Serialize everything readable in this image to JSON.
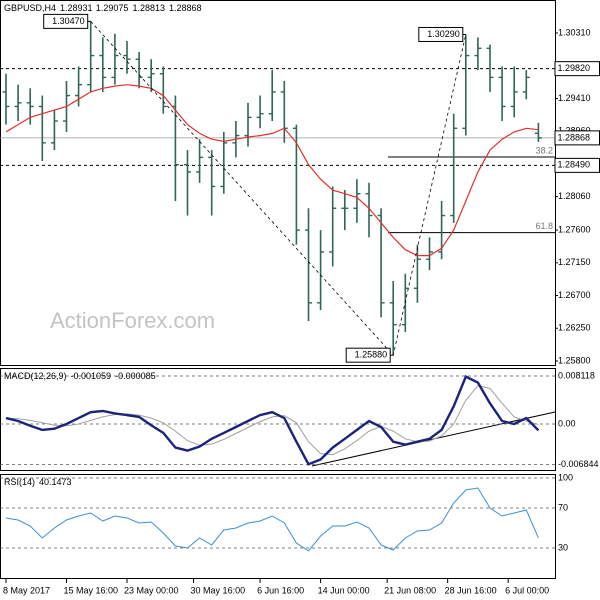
{
  "chart_data": {
    "type": "ohlc",
    "symbol": "GBPUSD,H4",
    "color": "#2f6656",
    "watermark": "ActionForex.com",
    "open": [
      1.295,
      1.293,
      1.2935,
      1.293,
      1.288,
      1.291,
      1.2945,
      1.296,
      1.3,
      1.297,
      1.3,
      1.2995,
      1.297,
      1.2975,
      1.293,
      1.285,
      1.284,
      1.286,
      1.282,
      1.288,
      1.289,
      1.2915,
      1.292,
      1.295,
      1.29,
      1.276,
      1.266,
      1.273,
      1.279,
      1.279,
      1.281,
      1.278,
      1.266,
      1.263,
      1.268,
      1.272,
      1.273,
      1.278,
      1.29,
      1.3,
      1.301,
      1.297,
      1.293,
      1.295,
      1.28931
    ],
    "high": [
      1.2975,
      1.296,
      1.2955,
      1.2945,
      1.2925,
      1.2965,
      1.2985,
      1.3047,
      1.3025,
      1.303,
      1.302,
      1.3005,
      1.2995,
      1.2985,
      1.2945,
      1.287,
      1.2885,
      1.287,
      1.2895,
      1.291,
      1.2935,
      1.2945,
      1.298,
      1.2965,
      1.2905,
      1.279,
      1.276,
      1.282,
      1.2815,
      1.283,
      1.2825,
      1.279,
      1.269,
      1.27,
      1.274,
      1.275,
      1.28,
      1.292,
      1.3029,
      1.3025,
      1.3015,
      1.2985,
      1.2985,
      1.298,
      1.29075
    ],
    "low": [
      1.2905,
      1.291,
      1.2905,
      1.2855,
      1.287,
      1.2895,
      1.293,
      1.295,
      1.295,
      1.296,
      1.2975,
      1.2955,
      1.295,
      1.292,
      1.28,
      1.278,
      1.2825,
      1.278,
      1.281,
      1.286,
      1.2875,
      1.29,
      1.291,
      1.288,
      1.274,
      1.2635,
      1.265,
      1.271,
      1.276,
      1.277,
      1.275,
      1.264,
      1.2588,
      1.262,
      1.266,
      1.2705,
      1.272,
      1.277,
      1.289,
      1.298,
      1.295,
      1.291,
      1.2915,
      1.294,
      1.28813
    ],
    "close": [
      1.293,
      1.2935,
      1.293,
      1.288,
      1.291,
      1.2945,
      1.296,
      1.3,
      1.297,
      1.3,
      1.2995,
      1.297,
      1.2975,
      1.293,
      1.285,
      1.284,
      1.286,
      1.282,
      1.288,
      1.289,
      1.2915,
      1.292,
      1.295,
      1.29,
      1.276,
      1.266,
      1.273,
      1.279,
      1.279,
      1.281,
      1.278,
      1.266,
      1.263,
      1.268,
      1.272,
      1.273,
      1.278,
      1.29,
      1.3,
      1.301,
      1.297,
      1.293,
      1.295,
      1.297,
      1.28868
    ],
    "ma": {
      "color": "#e0302a",
      "values": [
        1.2895,
        1.2905,
        1.2915,
        1.292,
        1.2925,
        1.293,
        1.294,
        1.295,
        1.2955,
        1.2958,
        1.296,
        1.2958,
        1.2955,
        1.2945,
        1.2925,
        1.2905,
        1.2893,
        1.2885,
        1.2882,
        1.2885,
        1.2888,
        1.289,
        1.2893,
        1.29,
        1.288,
        1.285,
        1.283,
        1.2815,
        1.281,
        1.2805,
        1.279,
        1.277,
        1.275,
        1.2733,
        1.2725,
        1.2725,
        1.2735,
        1.276,
        1.28,
        1.284,
        1.287,
        1.2885,
        1.2895,
        1.29,
        1.2898
      ]
    },
    "ylim": [
      1.25745,
      1.30764
    ],
    "yticks": [
      {
        "value": 1.3031,
        "label": "1.30310"
      },
      {
        "value": 1.2941,
        "label": "1.29410"
      },
      {
        "value": 1.2896,
        "label": "1.28960"
      },
      {
        "value": 1.2806,
        "label": "1.28060"
      },
      {
        "value": 1.276,
        "label": "1.27600"
      },
      {
        "value": 1.2715,
        "label": "1.27150"
      },
      {
        "value": 1.267,
        "label": "1.26700"
      },
      {
        "value": 1.2625,
        "label": "1.26250"
      },
      {
        "value": 1.258,
        "label": "1.25800"
      }
    ],
    "levels": [
      {
        "value": 1.2982,
        "label": "1.29820"
      },
      {
        "value": 1.2849,
        "label": "1.28490"
      }
    ],
    "last": {
      "value": 1.28868,
      "label": "1.28868"
    },
    "fibs": [
      {
        "value": 1.28605,
        "label": "38.2"
      },
      {
        "value": 1.27565,
        "label": "61.8"
      }
    ],
    "pivots": [
      {
        "bar": 7,
        "value": 1.3047,
        "label": "1.30470"
      },
      {
        "bar": 32,
        "value": 1.2588,
        "label": "1.25880"
      },
      {
        "bar": 38,
        "value": 1.3029,
        "label": "1.30290"
      }
    ],
    "xticks": [
      {
        "value": 0,
        "label": "8 May 2017"
      },
      {
        "value": 5,
        "label": "15 May 16:00"
      },
      {
        "value": 10,
        "label": "23 May 00:00"
      },
      {
        "value": 15.5,
        "label": "30 May 16:00"
      },
      {
        "value": 21,
        "label": "6 Jun 16:00"
      },
      {
        "value": 26,
        "label": "14 Jun 00:00"
      },
      {
        "value": 31.5,
        "label": "21 Jun 08:00"
      },
      {
        "value": 36.5,
        "label": "28 Jun 16:00"
      },
      {
        "value": 41.5,
        "label": "6 Jul 00:00"
      }
    ],
    "macd": {
      "label": "MACD(12,26,9)",
      "ylim": [
        -0.00778,
        0.00947
      ],
      "yticks": [
        0.008118,
        {
          "value": 0,
          "label": "0.00"
        },
        -0.006844
      ],
      "series": [
        {
          "color": "#1a237e",
          "values": [
            0.001,
            0.0005,
            -0.0003,
            -0.001,
            -0.0008,
            0.0,
            0.001,
            0.002,
            0.0022,
            0.0018,
            0.0015,
            0.0012,
            -0.0002,
            -0.0015,
            -0.004,
            -0.0045,
            -0.0038,
            -0.0025,
            -0.0015,
            -0.0005,
            0.0005,
            0.0015,
            0.002,
            0.001,
            -0.003,
            -0.0068,
            -0.006,
            -0.004,
            -0.0025,
            -0.001,
            0.0005,
            -0.0005,
            -0.003,
            -0.0035,
            -0.003,
            -0.0025,
            -0.001,
            0.003,
            0.008,
            0.007,
            0.0035,
            0.0005,
            0.0,
            0.001,
            -0.001059
          ]
        },
        {
          "color": "#a0a0a0",
          "values": [
            0.001,
            0.0009,
            0.0006,
            0.0002,
            -0.0002,
            -0.0003,
            0.0,
            0.0006,
            0.0012,
            0.0016,
            0.0017,
            0.0015,
            0.001,
            0.0002,
            -0.0012,
            -0.0028,
            -0.0036,
            -0.0034,
            -0.0026,
            -0.0016,
            -0.0006,
            0.0004,
            0.0012,
            0.0014,
            0.0002,
            -0.003,
            -0.005,
            -0.0052,
            -0.0042,
            -0.0028,
            -0.0012,
            -0.0004,
            -0.0012,
            -0.0025,
            -0.003,
            -0.0029,
            -0.002,
            0.0,
            0.004,
            0.0065,
            0.006,
            0.0035,
            0.0012,
            0.0005,
            -8.5e-05
          ]
        }
      ]
    },
    "rsi": {
      "label": "RSI(14)",
      "color": "#3b8fd4",
      "ylim": [
        0,
        104
      ],
      "yticks": [
        100,
        70,
        30
      ],
      "values": [
        60,
        58,
        52,
        40,
        50,
        58,
        62,
        65,
        57,
        62,
        60,
        55,
        56,
        45,
        32,
        30,
        40,
        33,
        48,
        50,
        55,
        57,
        62,
        55,
        35,
        27,
        42,
        52,
        52,
        56,
        50,
        33,
        28,
        40,
        47,
        48,
        55,
        75,
        88,
        90,
        70,
        62,
        65,
        68,
        40.1473
      ]
    }
  }
}
